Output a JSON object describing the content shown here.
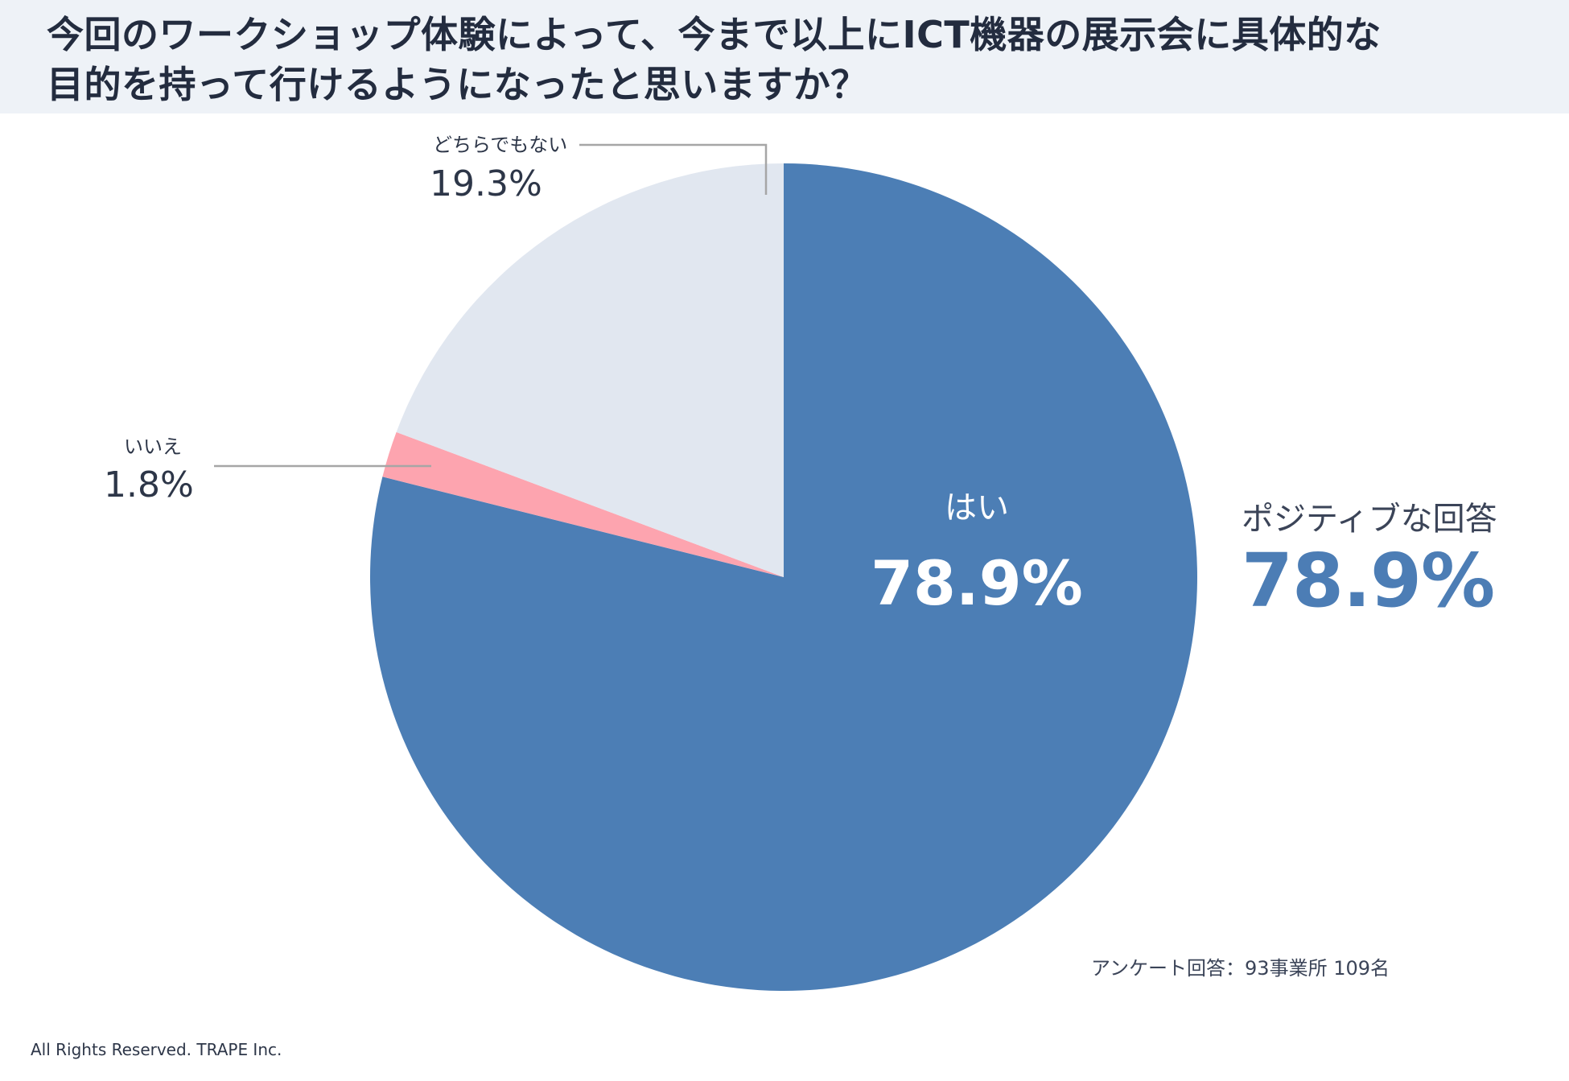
{
  "title": {
    "line1": "今回のワークショップ体験によって、今まで以上にICT機器の展示会に具体的な",
    "line2": "目的を持って行けるようになったと思いますか？"
  },
  "chart_data": {
    "type": "pie",
    "categories": [
      "はい",
      "いいえ",
      "どちらでもない"
    ],
    "values": [
      78.9,
      1.8,
      19.3
    ],
    "value_labels": [
      "78.9%",
      "1.8%",
      "19.3%"
    ],
    "colors": [
      "#4c7eb5",
      "#fda4af",
      "#e1e7f0"
    ],
    "start": "12 o'clock",
    "direction": "clockwise"
  },
  "callout": {
    "label": "ポジティブな回答",
    "value": "78.9%"
  },
  "note": "アンケート回答：93事業所 109名",
  "copyright": "All Rights Reserved. TRAPE Inc."
}
